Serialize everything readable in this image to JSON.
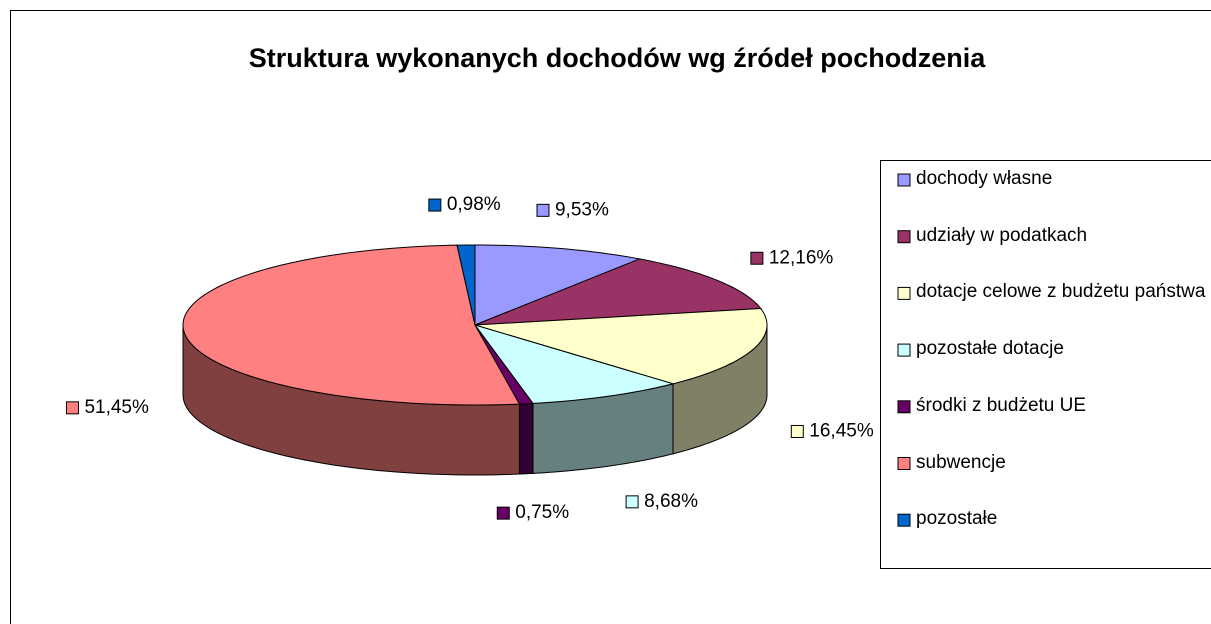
{
  "chart_data": {
    "type": "pie",
    "title": "Struktura wykonanych dochodów wg źródeł pochodzenia",
    "categories": [
      "dochody własne",
      "udziały w podatkach",
      "dotacje celowe z budżetu państwa",
      "pozostałe dotacje",
      "środki z budżetu UE",
      "subwencje",
      "pozostałe"
    ],
    "values": [
      9.53,
      12.16,
      16.45,
      8.68,
      0.75,
      51.45,
      0.98
    ],
    "value_labels": [
      "9,53%",
      "12,16%",
      "16,45%",
      "8,68%",
      "0,75%",
      "51,45%",
      "0,98%"
    ],
    "colors": [
      "#9999ff",
      "#993366",
      "#ffffcc",
      "#ccffff",
      "#660066",
      "#ff8080",
      "#0066cc"
    ],
    "legend": "right"
  }
}
